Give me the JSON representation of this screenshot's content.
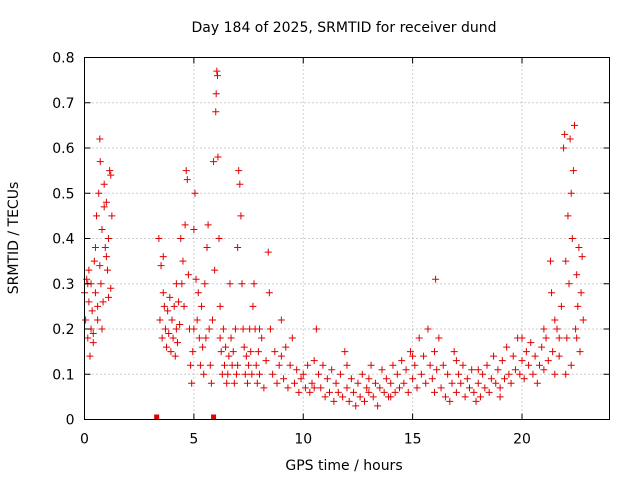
{
  "chart_data": {
    "type": "scatter",
    "title": "Day 184 of 2025, SRMTID for receiver dund",
    "xlabel": "GPS time / hours",
    "ylabel": "SRMTID / TECUs",
    "xlim": [
      0,
      24
    ],
    "ylim": [
      0,
      0.8
    ],
    "xticks": [
      0,
      5,
      10,
      15,
      20
    ],
    "yticks": [
      0,
      0.1,
      0.2,
      0.3,
      0.4,
      0.5,
      0.6,
      0.7,
      0.8
    ],
    "xtick_labels": [
      "0",
      "5",
      "10",
      "15",
      "20"
    ],
    "ytick_labels": [
      "0",
      "0.1",
      "0.2",
      "0.3",
      "0.4",
      "0.5",
      "0.6",
      "0.7",
      "0.8"
    ],
    "grid": true,
    "marker": "+",
    "color": "#e00000",
    "zero_markers_x": [
      3.3,
      5.9
    ],
    "series": [
      {
        "name": "SRMTID",
        "points": [
          [
            0.0,
            0.28
          ],
          [
            0.05,
            0.22
          ],
          [
            0.1,
            0.31
          ],
          [
            0.15,
            0.18
          ],
          [
            0.2,
            0.26
          ],
          [
            0.25,
            0.14
          ],
          [
            0.3,
            0.3
          ],
          [
            0.35,
            0.24
          ],
          [
            0.4,
            0.19
          ],
          [
            0.45,
            0.35
          ],
          [
            0.5,
            0.28
          ],
          [
            0.55,
            0.45
          ],
          [
            0.6,
            0.22
          ],
          [
            0.65,
            0.5
          ],
          [
            0.7,
            0.62
          ],
          [
            0.72,
            0.57
          ],
          [
            0.75,
            0.3
          ],
          [
            0.8,
            0.42
          ],
          [
            0.85,
            0.26
          ],
          [
            0.9,
            0.52
          ],
          [
            0.95,
            0.38
          ],
          [
            1.0,
            0.48
          ],
          [
            1.05,
            0.33
          ],
          [
            1.1,
            0.4
          ],
          [
            1.15,
            0.55
          ],
          [
            1.2,
            0.29
          ],
          [
            1.25,
            0.45
          ],
          [
            0.3,
            0.2
          ],
          [
            0.4,
            0.17
          ],
          [
            0.6,
            0.25
          ],
          [
            0.8,
            0.2
          ],
          [
            1.0,
            0.36
          ],
          [
            1.1,
            0.27
          ],
          [
            0.2,
            0.33
          ],
          [
            0.5,
            0.38
          ],
          [
            0.9,
            0.47
          ],
          [
            1.2,
            0.54
          ],
          [
            0.7,
            0.34
          ],
          [
            3.4,
            0.4
          ],
          [
            3.45,
            0.22
          ],
          [
            3.5,
            0.34
          ],
          [
            3.55,
            0.18
          ],
          [
            3.6,
            0.36
          ],
          [
            3.65,
            0.25
          ],
          [
            3.7,
            0.2
          ],
          [
            3.75,
            0.16
          ],
          [
            3.8,
            0.24
          ],
          [
            3.85,
            0.19
          ],
          [
            3.9,
            0.27
          ],
          [
            3.95,
            0.15
          ],
          [
            4.0,
            0.22
          ],
          [
            4.05,
            0.18
          ],
          [
            4.1,
            0.25
          ],
          [
            4.15,
            0.14
          ],
          [
            4.2,
            0.2
          ],
          [
            4.25,
            0.17
          ],
          [
            4.3,
            0.26
          ],
          [
            4.35,
            0.21
          ],
          [
            4.4,
            0.4
          ],
          [
            4.45,
            0.3
          ],
          [
            4.5,
            0.35
          ],
          [
            4.55,
            0.25
          ],
          [
            4.6,
            0.43
          ],
          [
            4.65,
            0.55
          ],
          [
            4.7,
            0.53
          ],
          [
            4.75,
            0.32
          ],
          [
            4.8,
            0.2
          ],
          [
            4.85,
            0.12
          ],
          [
            4.9,
            0.08
          ],
          [
            4.95,
            0.15
          ],
          [
            5.0,
            0.42
          ],
          [
            5.05,
            0.5
          ],
          [
            5.1,
            0.31
          ],
          [
            5.15,
            0.22
          ],
          [
            5.2,
            0.28
          ],
          [
            5.25,
            0.18
          ],
          [
            5.3,
            0.12
          ],
          [
            5.35,
            0.25
          ],
          [
            5.4,
            0.16
          ],
          [
            5.45,
            0.1
          ],
          [
            5.5,
            0.3
          ],
          [
            5.55,
            0.18
          ],
          [
            5.6,
            0.38
          ],
          [
            5.65,
            0.43
          ],
          [
            5.7,
            0.2
          ],
          [
            5.75,
            0.12
          ],
          [
            5.8,
            0.08
          ],
          [
            5.85,
            0.22
          ],
          [
            5.9,
            0.57
          ],
          [
            5.95,
            0.33
          ],
          [
            6.0,
            0.68
          ],
          [
            6.02,
            0.72
          ],
          [
            6.05,
            0.77
          ],
          [
            6.08,
            0.76
          ],
          [
            6.1,
            0.58
          ],
          [
            6.15,
            0.4
          ],
          [
            6.2,
            0.25
          ],
          [
            6.25,
            0.15
          ],
          [
            6.3,
            0.1
          ],
          [
            6.35,
            0.2
          ],
          [
            6.4,
            0.12
          ],
          [
            6.45,
            0.16
          ],
          [
            6.5,
            0.08
          ],
          [
            6.55,
            0.1
          ],
          [
            6.6,
            0.14
          ],
          [
            6.65,
            0.3
          ],
          [
            6.7,
            0.18
          ],
          [
            6.75,
            0.12
          ],
          [
            6.8,
            0.15
          ],
          [
            6.85,
            0.08
          ],
          [
            6.9,
            0.2
          ],
          [
            6.95,
            0.1
          ],
          [
            7.0,
            0.38
          ],
          [
            7.05,
            0.55
          ],
          [
            7.1,
            0.52
          ],
          [
            7.15,
            0.45
          ],
          [
            7.2,
            0.3
          ],
          [
            7.25,
            0.2
          ],
          [
            7.3,
            0.16
          ],
          [
            7.35,
            0.1
          ],
          [
            7.4,
            0.14
          ],
          [
            7.45,
            0.08
          ],
          [
            7.5,
            0.12
          ],
          [
            7.55,
            0.2
          ],
          [
            7.6,
            0.15
          ],
          [
            7.65,
            0.1
          ],
          [
            7.7,
            0.25
          ],
          [
            7.75,
            0.3
          ],
          [
            7.8,
            0.2
          ],
          [
            7.85,
            0.12
          ],
          [
            7.9,
            0.08
          ],
          [
            7.95,
            0.15
          ],
          [
            8.0,
            0.1
          ],
          [
            8.1,
            0.18
          ],
          [
            8.2,
            0.07
          ],
          [
            8.3,
            0.13
          ],
          [
            8.4,
            0.37
          ],
          [
            8.45,
            0.28
          ],
          [
            8.5,
            0.2
          ],
          [
            8.6,
            0.1
          ],
          [
            8.7,
            0.15
          ],
          [
            8.8,
            0.08
          ],
          [
            8.9,
            0.12
          ],
          [
            9.0,
            0.22
          ],
          [
            9.1,
            0.09
          ],
          [
            9.2,
            0.16
          ],
          [
            9.3,
            0.07
          ],
          [
            9.4,
            0.12
          ],
          [
            9.5,
            0.18
          ],
          [
            9.6,
            0.08
          ],
          [
            9.7,
            0.11
          ],
          [
            9.8,
            0.06
          ],
          [
            9.9,
            0.09
          ],
          [
            10.0,
            0.1
          ],
          [
            10.1,
            0.07
          ],
          [
            10.2,
            0.12
          ],
          [
            10.3,
            0.06
          ],
          [
            10.4,
            0.08
          ],
          [
            10.5,
            0.13
          ],
          [
            10.6,
            0.2
          ],
          [
            10.7,
            0.1
          ],
          [
            10.8,
            0.07
          ],
          [
            10.9,
            0.12
          ],
          [
            11.0,
            0.05
          ],
          [
            11.1,
            0.09
          ],
          [
            11.2,
            0.06
          ],
          [
            11.3,
            0.11
          ],
          [
            11.4,
            0.04
          ],
          [
            11.5,
            0.08
          ],
          [
            11.6,
            0.06
          ],
          [
            11.7,
            0.1
          ],
          [
            11.8,
            0.05
          ],
          [
            11.9,
            0.15
          ],
          [
            12.0,
            0.07
          ],
          [
            12.1,
            0.04
          ],
          [
            12.2,
            0.09
          ],
          [
            12.3,
            0.06
          ],
          [
            12.4,
            0.03
          ],
          [
            12.5,
            0.08
          ],
          [
            12.6,
            0.05
          ],
          [
            12.7,
            0.1
          ],
          [
            12.8,
            0.04
          ],
          [
            12.9,
            0.07
          ],
          [
            13.0,
            0.06
          ],
          [
            13.1,
            0.12
          ],
          [
            13.2,
            0.05
          ],
          [
            13.3,
            0.08
          ],
          [
            13.4,
            0.03
          ],
          [
            13.5,
            0.07
          ],
          [
            13.6,
            0.11
          ],
          [
            13.7,
            0.06
          ],
          [
            13.8,
            0.09
          ],
          [
            13.9,
            0.05
          ],
          [
            14.0,
            0.08
          ],
          [
            14.1,
            0.12
          ],
          [
            14.2,
            0.06
          ],
          [
            14.3,
            0.1
          ],
          [
            14.4,
            0.07
          ],
          [
            14.5,
            0.13
          ],
          [
            14.6,
            0.08
          ],
          [
            14.7,
            0.11
          ],
          [
            14.8,
            0.06
          ],
          [
            14.9,
            0.15
          ],
          [
            15.0,
            0.09
          ],
          [
            15.1,
            0.12
          ],
          [
            15.2,
            0.07
          ],
          [
            15.3,
            0.18
          ],
          [
            15.4,
            0.1
          ],
          [
            15.5,
            0.14
          ],
          [
            15.6,
            0.08
          ],
          [
            15.7,
            0.2
          ],
          [
            15.8,
            0.12
          ],
          [
            15.9,
            0.09
          ],
          [
            16.0,
            0.15
          ],
          [
            16.05,
            0.31
          ],
          [
            16.1,
            0.11
          ],
          [
            16.2,
            0.18
          ],
          [
            16.3,
            0.07
          ],
          [
            16.4,
            0.12
          ],
          [
            16.5,
            0.05
          ],
          [
            16.6,
            0.1
          ],
          [
            16.7,
            0.04
          ],
          [
            16.8,
            0.08
          ],
          [
            16.9,
            0.15
          ],
          [
            17.0,
            0.06
          ],
          [
            17.1,
            0.1
          ],
          [
            17.2,
            0.08
          ],
          [
            17.3,
            0.12
          ],
          [
            17.4,
            0.05
          ],
          [
            17.5,
            0.09
          ],
          [
            17.6,
            0.07
          ],
          [
            17.7,
            0.11
          ],
          [
            17.8,
            0.06
          ],
          [
            17.9,
            0.04
          ],
          [
            18.0,
            0.08
          ],
          [
            18.1,
            0.05
          ],
          [
            18.2,
            0.1
          ],
          [
            18.3,
            0.07
          ],
          [
            18.4,
            0.12
          ],
          [
            18.5,
            0.06
          ],
          [
            18.6,
            0.09
          ],
          [
            18.7,
            0.14
          ],
          [
            18.8,
            0.08
          ],
          [
            18.9,
            0.11
          ],
          [
            19.0,
            0.07
          ],
          [
            19.1,
            0.13
          ],
          [
            19.2,
            0.09
          ],
          [
            19.3,
            0.16
          ],
          [
            19.4,
            0.1
          ],
          [
            19.5,
            0.08
          ],
          [
            19.6,
            0.14
          ],
          [
            19.7,
            0.11
          ],
          [
            19.8,
            0.18
          ],
          [
            19.9,
            0.1
          ],
          [
            20.0,
            0.13
          ],
          [
            20.1,
            0.09
          ],
          [
            20.2,
            0.15
          ],
          [
            20.3,
            0.12
          ],
          [
            20.4,
            0.17
          ],
          [
            20.5,
            0.1
          ],
          [
            20.6,
            0.14
          ],
          [
            20.7,
            0.08
          ],
          [
            20.8,
            0.12
          ],
          [
            20.9,
            0.16
          ],
          [
            21.0,
            0.11
          ],
          [
            21.1,
            0.18
          ],
          [
            21.2,
            0.13
          ],
          [
            21.3,
            0.35
          ],
          [
            21.35,
            0.28
          ],
          [
            21.4,
            0.15
          ],
          [
            21.5,
            0.1
          ],
          [
            21.6,
            0.2
          ],
          [
            21.7,
            0.14
          ],
          [
            21.8,
            0.25
          ],
          [
            21.9,
            0.6
          ],
          [
            21.95,
            0.63
          ],
          [
            22.0,
            0.35
          ],
          [
            22.05,
            0.18
          ],
          [
            22.1,
            0.45
          ],
          [
            22.15,
            0.3
          ],
          [
            22.2,
            0.62
          ],
          [
            22.25,
            0.5
          ],
          [
            22.3,
            0.4
          ],
          [
            22.35,
            0.55
          ],
          [
            22.4,
            0.65
          ],
          [
            22.45,
            0.2
          ],
          [
            22.5,
            0.32
          ],
          [
            22.55,
            0.25
          ],
          [
            22.6,
            0.38
          ],
          [
            22.65,
            0.15
          ],
          [
            22.7,
            0.28
          ],
          [
            22.75,
            0.36
          ],
          [
            22.8,
            0.22
          ],
          [
            22.25,
            0.12
          ],
          [
            22.0,
            0.1
          ],
          [
            21.7,
            0.18
          ],
          [
            22.5,
            0.18
          ],
          [
            0.15,
            0.3
          ],
          [
            3.6,
            0.28
          ],
          [
            4.2,
            0.3
          ],
          [
            5.0,
            0.2
          ],
          [
            6.2,
            0.18
          ],
          [
            7.0,
            0.12
          ],
          [
            8.0,
            0.2
          ],
          [
            9.0,
            0.14
          ],
          [
            10.5,
            0.07
          ],
          [
            12.0,
            0.12
          ],
          [
            13.0,
            0.09
          ],
          [
            14.0,
            0.05
          ],
          [
            15.0,
            0.14
          ],
          [
            16.0,
            0.06
          ],
          [
            17.0,
            0.13
          ],
          [
            18.0,
            0.11
          ],
          [
            19.0,
            0.05
          ],
          [
            20.0,
            0.18
          ],
          [
            21.0,
            0.2
          ],
          [
            21.5,
            0.22
          ]
        ]
      }
    ]
  }
}
